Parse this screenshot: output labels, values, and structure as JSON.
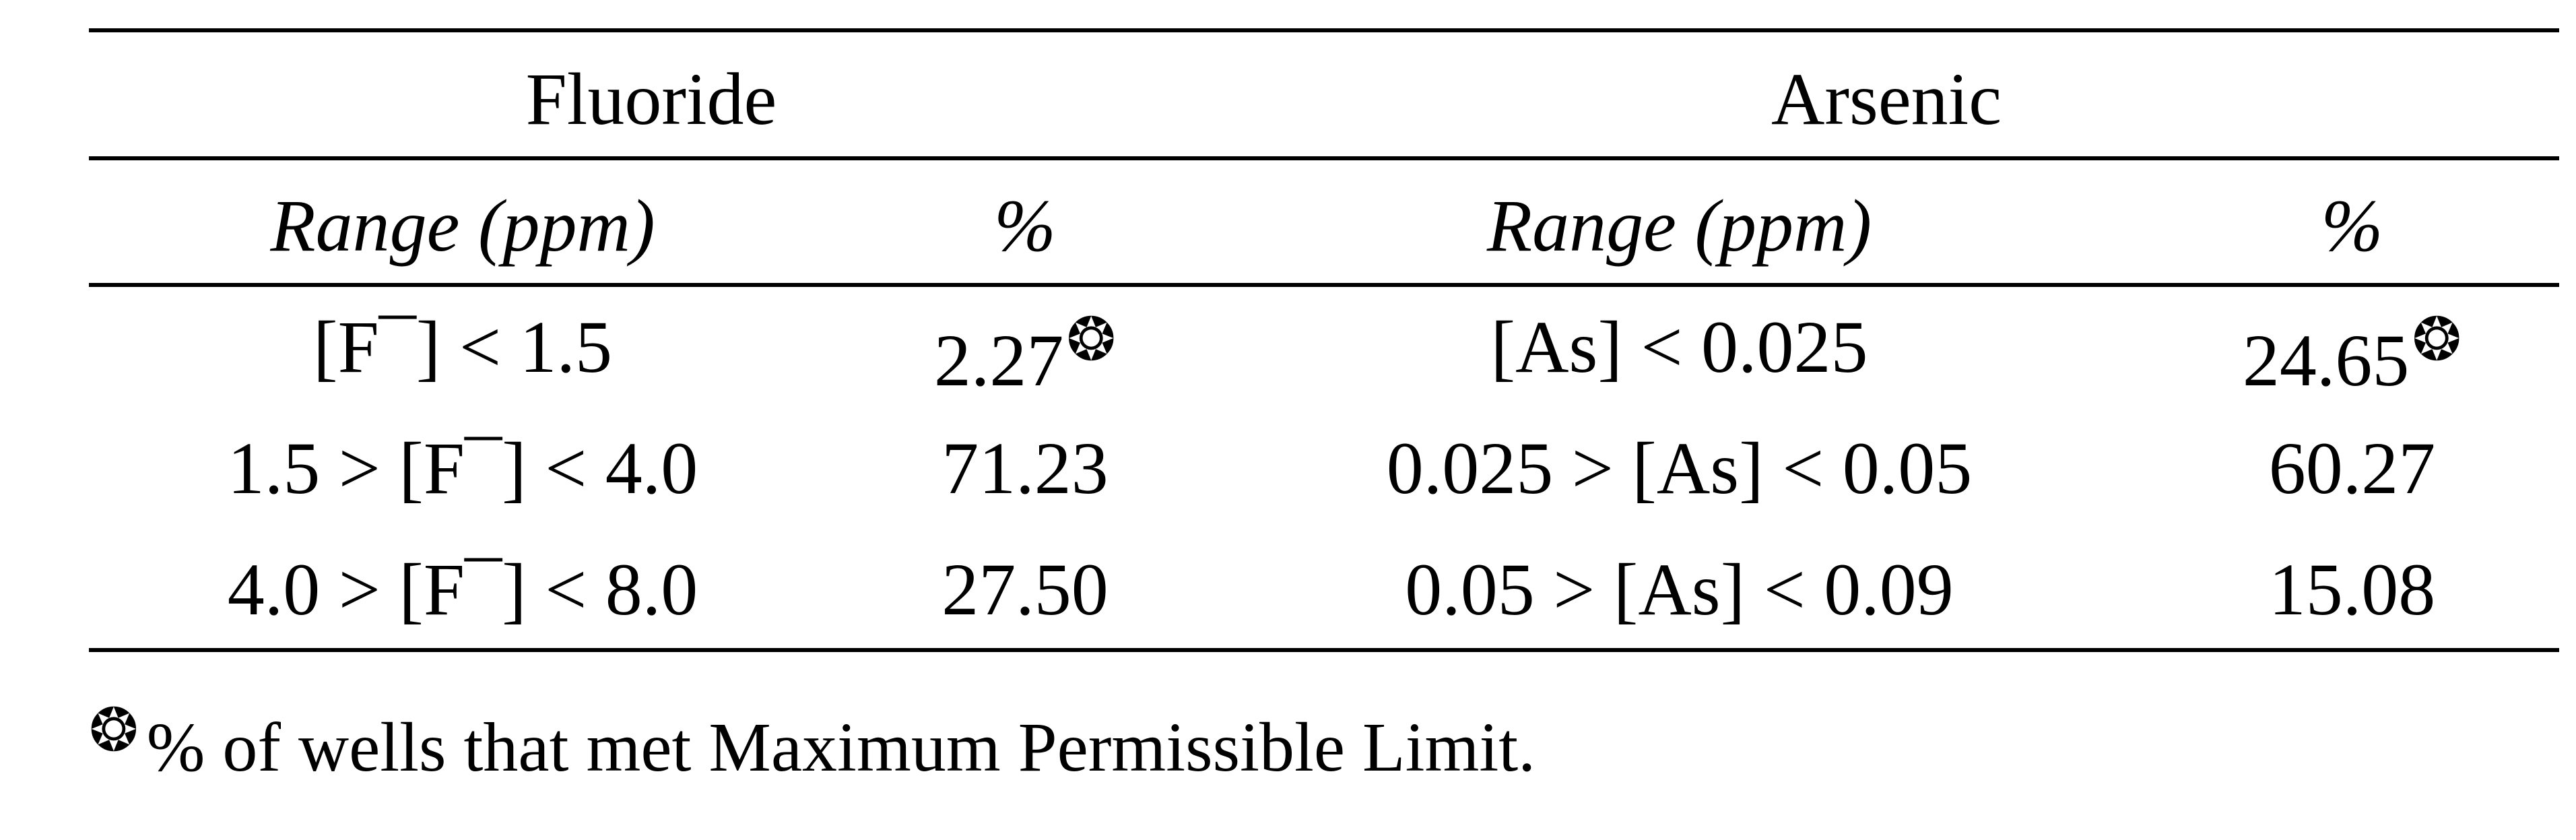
{
  "table": {
    "groups": {
      "fluoride": "Fluoride",
      "arsenic": "Arsenic"
    },
    "columns": {
      "fluoride_range": "Range (ppm)",
      "fluoride_pct": "%",
      "arsenic_range": "Range (ppm)",
      "arsenic_pct": "%"
    },
    "rows": [
      {
        "fluoride_range": "[F¯] < 1.5",
        "fluoride_pct": "2.27",
        "fluoride_mark": "❂",
        "arsenic_range": "[As] < 0.025",
        "arsenic_pct": "24.65",
        "arsenic_mark": "❂"
      },
      {
        "fluoride_range": "1.5 > [F¯] < 4.0",
        "fluoride_pct": "71.23",
        "arsenic_range": "0.025 > [As] < 0.05",
        "arsenic_pct": "60.27"
      },
      {
        "fluoride_range": "4.0 > [F¯] < 8.0",
        "fluoride_pct": "27.50",
        "arsenic_range": "0.05 > [As] < 0.09",
        "arsenic_pct": "15.08"
      }
    ]
  },
  "footnote": {
    "mark": "❂",
    "text": "% of wells that met Maximum Permissible Limit."
  }
}
